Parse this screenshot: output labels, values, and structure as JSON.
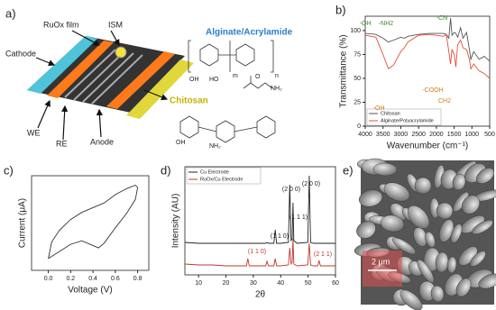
{
  "panels": {
    "a": {
      "label": "a)",
      "texts": [
        "RuOx film",
        "ISM",
        "Cathode",
        "Alginate/Acrylamide",
        "Chitosan",
        "WE",
        "RE",
        "Anode"
      ],
      "chem_labels": [
        "OH",
        "HO",
        "O",
        "NH₂",
        "n",
        "m",
        "OH",
        "NH₂"
      ]
    },
    "e": {
      "label": "e)",
      "scale": "2 μm"
    }
  },
  "chart_data": [
    {
      "type": "line",
      "panel_label": "b)",
      "y_label": "Transmittance (%)",
      "x_label": "Wavenumber (cm⁻¹)",
      "x": [
        4000,
        3700,
        3500,
        3350,
        3200,
        3000,
        2900,
        2800,
        2500,
        2200,
        2000,
        1800,
        1720,
        1650,
        1600,
        1560,
        1500,
        1450,
        1400,
        1320,
        1250,
        1150,
        1070,
        1030,
        950,
        800,
        650,
        500
      ],
      "series": [
        {
          "name": "Chitosan",
          "color": "#555555",
          "values": [
            97,
            96,
            92,
            88,
            90,
            93,
            92,
            94,
            96,
            97,
            97,
            97,
            96,
            92,
            113,
            95,
            98,
            97,
            93,
            103,
            92,
            98,
            80,
            70,
            78,
            70,
            73,
            68
          ]
        },
        {
          "name": "Alginate/Polyacrylamide",
          "color": "#e0503a",
          "values": [
            95,
            93,
            75,
            60,
            64,
            78,
            82,
            88,
            95,
            96,
            95,
            94,
            96,
            78,
            65,
            80,
            75,
            62,
            85,
            90,
            82,
            80,
            70,
            60,
            65,
            58,
            55,
            50
          ]
        }
      ],
      "xlim": [
        4000,
        500
      ],
      "xticks": [
        4000,
        3500,
        3000,
        2500,
        2000,
        1500,
        1000,
        500
      ],
      "ylim": [
        0,
        115
      ],
      "yticks": [
        0,
        25,
        50,
        75,
        100
      ],
      "annotations": [
        {
          "text": "-OH",
          "color": "#3a8a2a"
        },
        {
          "text": "-NH2",
          "color": "#3a8a2a"
        },
        {
          "text": "-CN",
          "color": "#3a8a2a"
        },
        {
          "text": "-COOH",
          "color": "#d67a12"
        },
        {
          "text": "-OH",
          "color": "#d67a12"
        },
        {
          "text": "CH2",
          "color": "#d67a12"
        }
      ],
      "legend": "lower-left"
    },
    {
      "type": "line",
      "panel_label": "c)",
      "y_label": "Current (μA)",
      "x_label": "Voltage (V)",
      "x": [
        0,
        0.1,
        0.2,
        0.3,
        0.4,
        0.45,
        0.5,
        0.6,
        0.7,
        0.78,
        0.8,
        0.78,
        0.7,
        0.6,
        0.5,
        0.4,
        0.3,
        0.2,
        0.1,
        0.03,
        0
      ],
      "series": [
        {
          "color": "#333333",
          "values": [
            -1.5,
            -1.2,
            -0.9,
            -0.75,
            -0.95,
            -1.05,
            -0.85,
            -0.2,
            0.4,
            1.0,
            1.5,
            1.6,
            1.45,
            1.2,
            0.85,
            0.65,
            0.45,
            0.15,
            -0.3,
            -0.8,
            -1.5
          ]
        }
      ],
      "xlim": [
        -0.15,
        0.9
      ],
      "xticks": [
        {
          "value": 0,
          "label": "0.0"
        },
        0.2,
        0.4,
        0.6,
        0.8
      ],
      "ylim": [
        -2,
        2
      ],
      "yticks": []
    },
    {
      "type": "line",
      "panel_label": "d)",
      "y_label": "Intensity (AU)",
      "x_label": "2θ",
      "x": [
        5,
        10,
        15,
        20,
        25,
        27.5,
        28,
        28.5,
        30,
        34.5,
        35,
        35.5,
        37.5,
        38,
        38.5,
        40,
        42.8,
        43.3,
        43.8,
        44.2,
        44.5,
        44.8,
        46,
        49.9,
        50.4,
        50.9,
        52,
        53.5,
        54,
        54.5,
        56,
        60
      ],
      "series": [
        {
          "name": "Cu Electrode",
          "color": "#222222",
          "values": [
            3.6,
            3.5,
            3.5,
            3.5,
            3.5,
            3.5,
            3.5,
            3.5,
            3.5,
            3.5,
            3.6,
            3.5,
            3.5,
            5,
            3.5,
            3.5,
            3.6,
            10,
            3.8,
            4,
            8,
            3.8,
            3.5,
            3.6,
            11,
            3.6,
            3.5,
            3.5,
            3.5,
            3.5,
            3.5,
            3.5
          ]
        },
        {
          "name": "RuOx/Cu Electrode",
          "color": "#c0392b",
          "values": [
            1.2,
            1.1,
            1.1,
            1,
            1,
            1,
            1.8,
            1,
            1,
            1,
            1.5,
            1,
            1,
            1.8,
            1,
            1,
            1.1,
            3,
            1.2,
            1.4,
            4,
            1.2,
            1,
            1.1,
            3.5,
            1.1,
            1,
            1,
            1.6,
            1,
            1,
            1
          ]
        }
      ],
      "xlim": [
        5,
        60
      ],
      "xticks": [
        10,
        20,
        30,
        40,
        50,
        60
      ],
      "ylim": [
        0,
        12
      ],
      "yticks": [],
      "annotations": [
        {
          "text": "(1 1 0)",
          "color": "#222222"
        },
        {
          "text": "(2 0 0)",
          "color": "#222222"
        },
        {
          "text": "(1 1 1)",
          "color": "#222222"
        },
        {
          "text": "(2 0 0)",
          "color": "#222222"
        },
        {
          "text": "(1 1 0)",
          "color": "#c0392b"
        },
        {
          "text": "(2 1 1)",
          "color": "#c0392b"
        }
      ],
      "legend": "upper-left"
    }
  ]
}
